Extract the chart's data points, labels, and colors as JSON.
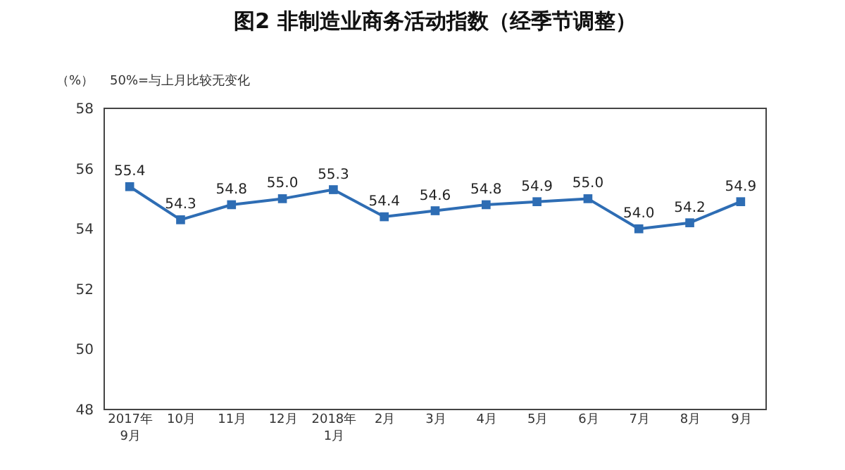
{
  "chart_data": {
    "type": "line",
    "title": "图2 非制造业商务活动指数（经季节调整）",
    "ylabel": "（%）",
    "annotations": [
      "50%=与上月比较无变化"
    ],
    "categories": [
      "2017年\n9月",
      "10月",
      "11月",
      "12月",
      "2018年\n1月",
      "2月",
      "3月",
      "4月",
      "5月",
      "6月",
      "7月",
      "8月",
      "9月"
    ],
    "series": [
      {
        "color": "#2e6db4",
        "values": [
          55.4,
          54.3,
          54.8,
          55.0,
          55.3,
          54.4,
          54.6,
          54.8,
          54.9,
          55.0,
          54.0,
          54.2,
          54.9
        ]
      }
    ],
    "value_labels": [
      "55.4",
      "54.3",
      "54.8",
      "55.0",
      "55.3",
      "54.4",
      "54.6",
      "54.8",
      "54.9",
      "55.0",
      "54.0",
      "54.2",
      "54.9"
    ],
    "ylim": [
      48,
      58
    ],
    "yticks": [
      48,
      50,
      52,
      54,
      56,
      58
    ],
    "grid": false,
    "legend": false,
    "marker": "square",
    "line_style": "solid"
  }
}
